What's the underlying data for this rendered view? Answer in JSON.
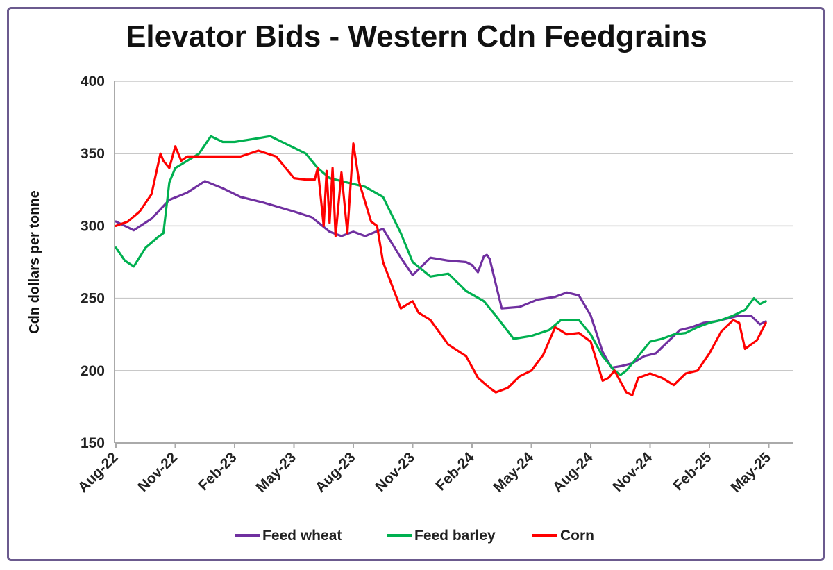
{
  "chart_data": {
    "type": "line",
    "title": "Elevator Bids - Western Cdn Feedgrains",
    "xlabel": "",
    "ylabel": "Cdn dollars per tonne",
    "ylim": [
      150,
      400
    ],
    "yticks": [
      150,
      200,
      250,
      300,
      350,
      400
    ],
    "xticks": [
      "Aug-22",
      "Nov-22",
      "Feb-23",
      "May-23",
      "Aug-23",
      "Nov-23",
      "Feb-24",
      "May-24",
      "Aug-24",
      "Nov-24",
      "Feb-25",
      "May-25"
    ],
    "grid": "horizontal",
    "legend_position": "bottom",
    "series": [
      {
        "name": "Feed wheat",
        "color": "#7030a0",
        "x": [
          0,
          0.3,
          0.6,
          0.9,
          1.2,
          1.5,
          1.8,
          2.1,
          2.5,
          3.0,
          3.3,
          3.6,
          3.8,
          4.0,
          4.2,
          4.5,
          4.8,
          5.0,
          5.3,
          5.6,
          5.9,
          6.0,
          6.1,
          6.2,
          6.25,
          6.3,
          6.5,
          6.8,
          7.1,
          7.4,
          7.6,
          7.8,
          8.0,
          8.2,
          8.35,
          8.5,
          8.7,
          8.9,
          9.1,
          9.3,
          9.5,
          9.7,
          9.9,
          10.1,
          10.3,
          10.5,
          10.7,
          10.85,
          10.95
        ],
        "y": [
          303,
          297,
          305,
          318,
          323,
          331,
          326,
          320,
          316,
          310,
          306,
          296,
          293,
          296,
          293,
          298,
          278,
          266,
          278,
          276,
          275,
          273,
          268,
          279,
          280,
          277,
          243,
          244,
          249,
          251,
          254,
          252,
          238,
          213,
          202,
          203,
          205,
          210,
          212,
          220,
          228,
          230,
          233,
          234,
          236,
          238,
          238,
          232,
          234
        ]
      },
      {
        "name": "Feed barley",
        "color": "#00b050",
        "x": [
          0,
          0.15,
          0.3,
          0.5,
          0.7,
          0.8,
          0.9,
          1.0,
          1.2,
          1.4,
          1.6,
          1.8,
          2.0,
          2.3,
          2.6,
          2.9,
          3.2,
          3.4,
          3.6,
          3.9,
          4.2,
          4.5,
          4.8,
          5.0,
          5.3,
          5.6,
          5.9,
          6.2,
          6.4,
          6.7,
          7.0,
          7.3,
          7.5,
          7.8,
          8.0,
          8.2,
          8.4,
          8.5,
          8.6,
          8.8,
          9.0,
          9.2,
          9.4,
          9.6,
          9.8,
          10.0,
          10.2,
          10.4,
          10.6,
          10.75,
          10.85,
          10.95
        ],
        "y": [
          285,
          276,
          272,
          285,
          292,
          295,
          330,
          340,
          345,
          350,
          362,
          358,
          358,
          360,
          362,
          356,
          350,
          340,
          333,
          330,
          327,
          320,
          295,
          275,
          265,
          267,
          255,
          248,
          238,
          222,
          224,
          228,
          235,
          235,
          225,
          210,
          200,
          197,
          200,
          210,
          220,
          222,
          225,
          226,
          230,
          233,
          235,
          238,
          242,
          250,
          246,
          248
        ]
      },
      {
        "name": "Corn",
        "color": "#ff0000",
        "x": [
          0,
          0.2,
          0.4,
          0.6,
          0.75,
          0.8,
          0.9,
          1.0,
          1.1,
          1.2,
          1.5,
          1.8,
          2.1,
          2.4,
          2.7,
          3.0,
          3.2,
          3.35,
          3.4,
          3.5,
          3.55,
          3.6,
          3.65,
          3.7,
          3.8,
          3.9,
          4.0,
          4.1,
          4.3,
          4.4,
          4.5,
          4.8,
          5.0,
          5.1,
          5.3,
          5.6,
          5.9,
          6.1,
          6.3,
          6.4,
          6.6,
          6.8,
          7.0,
          7.2,
          7.4,
          7.6,
          7.8,
          8.0,
          8.2,
          8.3,
          8.4,
          8.6,
          8.7,
          8.8,
          9.0,
          9.2,
          9.4,
          9.6,
          9.8,
          10.0,
          10.2,
          10.4,
          10.5,
          10.6,
          10.8,
          10.95
        ],
        "y": [
          300,
          303,
          310,
          322,
          350,
          345,
          340,
          355,
          345,
          348,
          348,
          348,
          348,
          352,
          348,
          333,
          332,
          332,
          340,
          300,
          338,
          302,
          340,
          293,
          337,
          295,
          357,
          330,
          303,
          300,
          275,
          243,
          248,
          240,
          235,
          218,
          210,
          195,
          188,
          185,
          188,
          196,
          200,
          211,
          230,
          225,
          226,
          220,
          193,
          195,
          200,
          185,
          183,
          195,
          198,
          195,
          190,
          198,
          200,
          212,
          227,
          235,
          233,
          215,
          221,
          233
        ]
      }
    ]
  }
}
